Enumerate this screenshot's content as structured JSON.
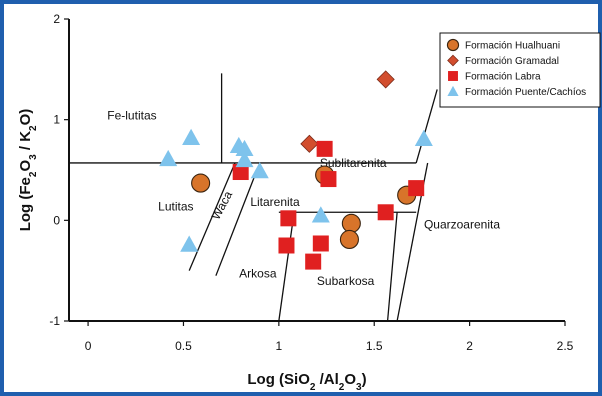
{
  "chart_data": {
    "type": "scatter",
    "xlabel": "Log (SiO2 /Al2O3)",
    "ylabel": "Log (Fe2O3 / K2O)",
    "xlim": [
      -0.1,
      2.5
    ],
    "ylim": [
      -1,
      2
    ],
    "x_ticks": [
      "0",
      "0.5",
      "1",
      "1.5",
      "2",
      "2.5"
    ],
    "y_ticks": [
      "-1",
      "0",
      "1",
      "2"
    ],
    "grid": false,
    "legend_position": "top-right",
    "field_labels": [
      {
        "text": "Fe-lutitas",
        "x": 0.23,
        "y": 1.0
      },
      {
        "text": "Lutitas",
        "x": 0.46,
        "y": 0.1
      },
      {
        "text": "Waca",
        "x": 0.72,
        "y": 0.13,
        "rotation": -62
      },
      {
        "text": "Litarenita",
        "x": 0.98,
        "y": 0.14
      },
      {
        "text": "Sublitarenita",
        "x": 1.39,
        "y": 0.53
      },
      {
        "text": "Quarzoarenita",
        "x": 1.96,
        "y": -0.08
      },
      {
        "text": "Arkosa",
        "x": 0.89,
        "y": -0.57
      },
      {
        "text": "Subarkosa",
        "x": 1.35,
        "y": -0.64
      }
    ],
    "boundaries": [
      [
        [
          -0.1,
          0.57
        ],
        [
          1.72,
          0.57
        ]
      ],
      [
        [
          0.7,
          1.46
        ],
        [
          0.7,
          0.57
        ]
      ],
      [
        [
          1.72,
          0.57
        ],
        [
          1.83,
          1.3
        ]
      ],
      [
        [
          0.77,
          0.57
        ],
        [
          0.53,
          -0.5
        ]
      ],
      [
        [
          0.9,
          0.57
        ],
        [
          0.67,
          -0.55
        ]
      ],
      [
        [
          1.0,
          0.08
        ],
        [
          1.72,
          0.08
        ]
      ],
      [
        [
          1.08,
          0.08
        ],
        [
          1.0,
          -1.0
        ]
      ],
      [
        [
          1.62,
          0.08
        ],
        [
          1.57,
          -1.0
        ]
      ],
      [
        [
          1.78,
          0.57
        ],
        [
          1.62,
          -1.0
        ]
      ]
    ],
    "series": [
      {
        "name": "Formación Hualhuani",
        "marker": "circle",
        "color": "#d8742a",
        "points": [
          [
            0.59,
            0.37
          ],
          [
            1.24,
            0.45
          ],
          [
            1.38,
            -0.03
          ],
          [
            1.37,
            -0.19
          ],
          [
            1.67,
            0.25
          ]
        ]
      },
      {
        "name": "Formación Gramadal",
        "marker": "diamond",
        "color": "#d24e2e",
        "points": [
          [
            1.16,
            0.76
          ],
          [
            1.56,
            1.4
          ]
        ]
      },
      {
        "name": "Formación Labra",
        "marker": "square",
        "color": "#e02020",
        "points": [
          [
            0.8,
            0.48
          ],
          [
            1.24,
            0.71
          ],
          [
            1.26,
            0.41
          ],
          [
            1.05,
            0.02
          ],
          [
            1.04,
            -0.25
          ],
          [
            1.22,
            -0.23
          ],
          [
            1.18,
            -0.41
          ],
          [
            1.56,
            0.08
          ],
          [
            1.72,
            0.32
          ]
        ]
      },
      {
        "name": "Formación Puente/Cachíos",
        "marker": "triangle",
        "color": "#7ec3ec",
        "points": [
          [
            0.54,
            0.82
          ],
          [
            0.42,
            0.61
          ],
          [
            0.53,
            -0.24
          ],
          [
            0.79,
            0.74
          ],
          [
            0.82,
            0.71
          ],
          [
            0.82,
            0.6
          ],
          [
            0.9,
            0.49
          ],
          [
            1.22,
            0.05
          ],
          [
            1.76,
            0.81
          ]
        ]
      }
    ]
  }
}
